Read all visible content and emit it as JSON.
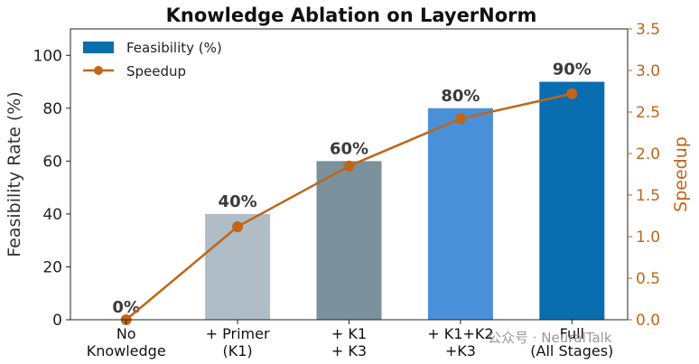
{
  "chart_data": {
    "type": "bar",
    "title": "Knowledge Ablation on LayerNorm",
    "xlabel": "",
    "ylabel": "Feasibility Rate (%)",
    "y2label": "Speedup",
    "categories": [
      [
        "No",
        "Knowledge"
      ],
      [
        "+ Primer",
        "(K1)"
      ],
      [
        "+ K1",
        "+ K3"
      ],
      [
        "+ K1+K2",
        "+K3"
      ],
      [
        "Full",
        "(All Stages)"
      ]
    ],
    "ylim": [
      0,
      110
    ],
    "yticks": [
      "0",
      "20",
      "40",
      "60",
      "80",
      "100"
    ],
    "y2lim": [
      0,
      3.5
    ],
    "y2ticks": [
      "0.0",
      "0.5",
      "1.0",
      "1.5",
      "2.0",
      "2.5",
      "3.0",
      "3.5"
    ],
    "series": [
      {
        "name": "Feasibility (%)",
        "kind": "bar",
        "axis": "left",
        "values": [
          0,
          40,
          60,
          80,
          90
        ],
        "labels": [
          "0%",
          "40%",
          "60%",
          "80%",
          "90%"
        ],
        "colors": [
          "#5b6f7d",
          "#b0bdc6",
          "#7b919c",
          "#4a90d9",
          "#0a6db0"
        ]
      },
      {
        "name": "Speedup",
        "kind": "line",
        "axis": "right",
        "values": [
          0.0,
          1.12,
          1.85,
          2.42,
          2.72
        ],
        "color": "#c0651a"
      }
    ],
    "legend": "top-left",
    "grid": false
  },
  "watermark": "公众号 · NeuralTalk"
}
